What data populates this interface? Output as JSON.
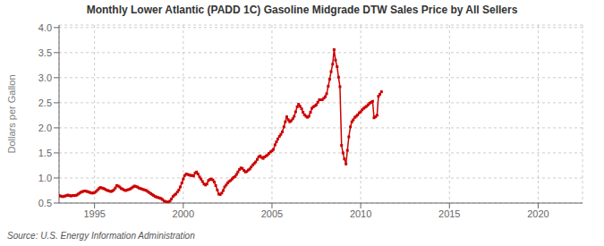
{
  "chart_data": {
    "type": "line",
    "title": "Monthly Lower Atlantic (PADD 1C) Gasoline Midgrade DTW Sales Price by All Sellers",
    "ylabel": "Dollars per Gallon",
    "annotations": [
      "Source: U.S. Energy Information Administration"
    ],
    "color": "#cc0000",
    "marker": "square",
    "grid": true,
    "xlim": [
      1993.0,
      2022.5
    ],
    "ylim": [
      0.5,
      4.05
    ],
    "xticks": [
      1995,
      2000,
      2005,
      2010,
      2015,
      2020
    ],
    "yticks": [
      0.5,
      {
        "value": 1.0,
        "label": "1.0"
      },
      1.5,
      {
        "value": 2.0,
        "label": "2.0"
      },
      2.5,
      {
        "value": 3.0,
        "label": "3.0"
      },
      3.5,
      {
        "value": 4.0,
        "label": "4.0"
      }
    ],
    "x": [
      1993.0,
      1993.08,
      1993.17,
      1993.25,
      1993.33,
      1993.42,
      1993.5,
      1993.58,
      1993.67,
      1993.75,
      1993.83,
      1993.92,
      1994.0,
      1994.08,
      1994.17,
      1994.25,
      1994.33,
      1994.42,
      1994.5,
      1994.58,
      1994.67,
      1994.75,
      1994.83,
      1994.92,
      1995.0,
      1995.08,
      1995.17,
      1995.25,
      1995.33,
      1995.42,
      1995.5,
      1995.58,
      1995.67,
      1995.75,
      1995.83,
      1995.92,
      1996.0,
      1996.08,
      1996.17,
      1996.25,
      1996.33,
      1996.42,
      1996.5,
      1996.58,
      1996.67,
      1996.75,
      1996.83,
      1996.92,
      1997.0,
      1997.08,
      1997.17,
      1997.25,
      1997.33,
      1997.42,
      1997.5,
      1997.58,
      1997.67,
      1997.75,
      1997.83,
      1997.92,
      1998.0,
      1998.08,
      1998.17,
      1998.25,
      1998.33,
      1998.42,
      1998.5,
      1998.58,
      1998.67,
      1998.75,
      1998.83,
      1998.92,
      1999.0,
      1999.08,
      1999.17,
      1999.25,
      1999.33,
      1999.42,
      1999.5,
      1999.58,
      1999.67,
      1999.75,
      1999.83,
      1999.92,
      2000.0,
      2000.08,
      2000.17,
      2000.25,
      2000.33,
      2000.42,
      2000.5,
      2000.58,
      2000.67,
      2000.75,
      2000.83,
      2000.92,
      2001.0,
      2001.08,
      2001.17,
      2001.25,
      2001.33,
      2001.42,
      2001.5,
      2001.58,
      2001.67,
      2001.75,
      2001.83,
      2001.92,
      2002.0,
      2002.08,
      2002.17,
      2002.25,
      2002.33,
      2002.42,
      2002.5,
      2002.58,
      2002.67,
      2002.75,
      2002.83,
      2002.92,
      2003.0,
      2003.08,
      2003.17,
      2003.25,
      2003.33,
      2003.42,
      2003.5,
      2003.58,
      2003.67,
      2003.75,
      2003.83,
      2003.92,
      2004.0,
      2004.08,
      2004.17,
      2004.25,
      2004.33,
      2004.42,
      2004.5,
      2004.58,
      2004.67,
      2004.75,
      2004.83,
      2004.92,
      2005.0,
      2005.08,
      2005.17,
      2005.25,
      2005.33,
      2005.42,
      2005.5,
      2005.58,
      2005.67,
      2005.75,
      2005.83,
      2005.92,
      2006.0,
      2006.08,
      2006.17,
      2006.25,
      2006.33,
      2006.42,
      2006.5,
      2006.58,
      2006.67,
      2006.75,
      2006.83,
      2006.92,
      2007.0,
      2007.08,
      2007.17,
      2007.25,
      2007.33,
      2007.42,
      2007.5,
      2007.58,
      2007.67,
      2007.75,
      2007.83,
      2007.92,
      2008.0,
      2008.08,
      2008.17,
      2008.25,
      2008.33,
      2008.42,
      2008.5,
      2008.58,
      2008.67,
      2008.75,
      2008.83,
      2008.92,
      2009.0,
      2009.08,
      2009.17,
      2009.25,
      2009.33,
      2009.42,
      2009.5,
      2009.58,
      2009.67,
      2009.75,
      2009.83,
      2009.92,
      2010.0,
      2010.08,
      2010.17,
      2010.25,
      2010.33,
      2010.42,
      2010.5,
      2010.58,
      2010.67,
      2010.75,
      2010.83,
      2010.92,
      2011.0,
      2011.08,
      2011.17
    ],
    "values": [
      0.65,
      0.64,
      0.63,
      0.63,
      0.64,
      0.65,
      0.66,
      0.65,
      0.64,
      0.65,
      0.65,
      0.65,
      0.66,
      0.68,
      0.7,
      0.72,
      0.73,
      0.74,
      0.74,
      0.73,
      0.72,
      0.71,
      0.7,
      0.7,
      0.71,
      0.73,
      0.76,
      0.79,
      0.81,
      0.8,
      0.79,
      0.78,
      0.76,
      0.75,
      0.74,
      0.73,
      0.74,
      0.76,
      0.8,
      0.85,
      0.84,
      0.82,
      0.79,
      0.78,
      0.76,
      0.75,
      0.76,
      0.77,
      0.78,
      0.8,
      0.82,
      0.84,
      0.83,
      0.82,
      0.8,
      0.79,
      0.78,
      0.77,
      0.76,
      0.75,
      0.73,
      0.71,
      0.69,
      0.67,
      0.65,
      0.63,
      0.62,
      0.61,
      0.6,
      0.59,
      0.57,
      0.54,
      0.53,
      0.52,
      0.52,
      0.54,
      0.58,
      0.63,
      0.66,
      0.68,
      0.72,
      0.76,
      0.82,
      0.9,
      0.98,
      1.05,
      1.08,
      1.07,
      1.06,
      1.05,
      1.05,
      1.04,
      1.1,
      1.12,
      1.08,
      1.02,
      0.98,
      0.93,
      0.88,
      0.86,
      0.88,
      0.95,
      0.97,
      0.98,
      0.96,
      0.92,
      0.85,
      0.76,
      0.68,
      0.67,
      0.7,
      0.75,
      0.82,
      0.86,
      0.9,
      0.93,
      0.95,
      0.98,
      1.01,
      1.03,
      1.07,
      1.12,
      1.17,
      1.2,
      1.19,
      1.15,
      1.12,
      1.13,
      1.16,
      1.18,
      1.22,
      1.26,
      1.29,
      1.32,
      1.37,
      1.42,
      1.44,
      1.41,
      1.39,
      1.42,
      1.44,
      1.46,
      1.49,
      1.52,
      1.54,
      1.57,
      1.66,
      1.72,
      1.78,
      1.83,
      1.87,
      1.92,
      2.02,
      2.12,
      2.22,
      2.16,
      2.12,
      2.14,
      2.18,
      2.23,
      2.32,
      2.42,
      2.47,
      2.43,
      2.38,
      2.31,
      2.26,
      2.23,
      2.21,
      2.23,
      2.31,
      2.39,
      2.42,
      2.44,
      2.46,
      2.51,
      2.56,
      2.56,
      2.56,
      2.59,
      2.62,
      2.68,
      2.83,
      2.97,
      3.12,
      3.27,
      3.56,
      3.35,
      3.22,
      3.01,
      2.82,
      1.65,
      1.5,
      1.38,
      1.28,
      1.55,
      1.82,
      2.02,
      2.12,
      2.16,
      2.21,
      2.23,
      2.26,
      2.3,
      2.32,
      2.36,
      2.39,
      2.41,
      2.43,
      2.46,
      2.49,
      2.51,
      2.53,
      2.2,
      2.22,
      2.25,
      2.63,
      2.67,
      2.72
    ]
  }
}
